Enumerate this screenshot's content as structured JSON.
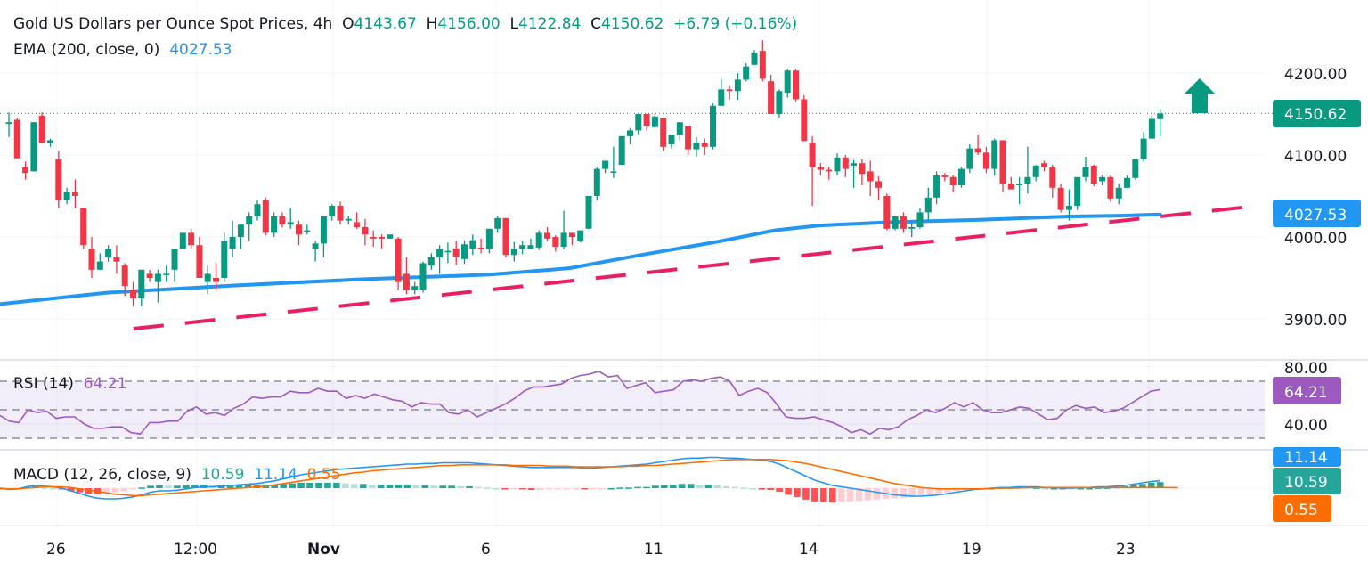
{
  "header": {
    "symbol_title": "Gold US Dollars per Ounce Spot Prices, 4h",
    "open_label": "O",
    "open_value": "4143.67",
    "high_label": "H",
    "high_value": "4156.00",
    "low_label": "L",
    "low_value": "4122.84",
    "close_label": "C",
    "close_value": "4150.62",
    "change": "+6.79 (+0.16%)"
  },
  "ema_legend": {
    "label": "EMA (200, close, 0)",
    "value": "4027.53"
  },
  "rsi_legend": {
    "label": "RSI (14)",
    "value": "64.21"
  },
  "macd_legend": {
    "label": "MACD (12, 26, close, 9)",
    "hist_value": "10.59",
    "macd_value": "11.14",
    "signal_value": "0.55"
  },
  "price_axis": {
    "ticks": [
      "4200.00",
      "4100.00",
      "4000.00",
      "3900.00"
    ],
    "last_price_tag": "4150.62",
    "ema_tag": "4027.53"
  },
  "rsi_axis": {
    "ticks": [
      "80.00",
      "40.00"
    ],
    "rsi_tag": "64.21"
  },
  "macd_axis": {
    "macd_tag": "11.14",
    "hist_tag": "10.59",
    "signal_tag": "0.55"
  },
  "time_axis": {
    "ticks": [
      "26",
      "12:00",
      "Nov",
      "6",
      "11",
      "14",
      "19",
      "23"
    ]
  },
  "colors": {
    "up": "#089981",
    "down": "#f23645",
    "ema": "#2196f3",
    "trendline": "#e91e63",
    "rsi": "#9c5ac0",
    "macd": "#2196f3",
    "signal": "#ff6d00",
    "arrow": "#089981"
  },
  "annotations": {
    "arrow": "up-arrow",
    "trendline": "rising-support-dashed"
  },
  "chart_data": [
    {
      "type": "candlestick",
      "title": "Gold US Dollars per Ounce Spot Prices, 4h",
      "ylim": [
        3850,
        4260
      ],
      "yticks": [
        3900,
        4000,
        4100,
        4200
      ],
      "xticks": [
        "26",
        "12:00",
        "Nov",
        "6",
        "11",
        "14",
        "19",
        "23"
      ],
      "ohlc": [
        [
          4138,
          4152,
          4122,
          4140
        ],
        [
          4143,
          4145,
          4096,
          4096
        ],
        [
          4085,
          4092,
          4070,
          4078
        ],
        [
          4080,
          4140,
          4080,
          4140
        ],
        [
          4148,
          4152,
          4115,
          4115
        ],
        [
          4115,
          4120,
          4110,
          4118
        ],
        [
          4095,
          4105,
          4035,
          4045
        ],
        [
          4045,
          4060,
          4040,
          4055
        ],
        [
          4055,
          4070,
          4035,
          4050
        ],
        [
          4035,
          4035,
          3985,
          3990
        ],
        [
          3985,
          4000,
          3950,
          3960
        ],
        [
          3960,
          3980,
          3960,
          3970
        ],
        [
          3975,
          3990,
          3970,
          3985
        ],
        [
          3975,
          3990,
          3955,
          3970
        ],
        [
          3965,
          3968,
          3928,
          3940
        ],
        [
          3935,
          3945,
          3915,
          3925
        ],
        [
          3925,
          3960,
          3915,
          3960
        ],
        [
          3955,
          3960,
          3945,
          3950
        ],
        [
          3945,
          3960,
          3920,
          3955
        ],
        [
          3955,
          3965,
          3945,
          3955
        ],
        [
          3960,
          3985,
          3945,
          3985
        ],
        [
          3985,
          4005,
          3985,
          4005
        ],
        [
          4005,
          4010,
          3985,
          3990
        ],
        [
          3990,
          4000,
          3950,
          3950
        ],
        [
          3945,
          3965,
          3930,
          3955
        ],
        [
          3950,
          3968,
          3935,
          3945
        ],
        [
          3950,
          4005,
          3945,
          3995
        ],
        [
          3985,
          4020,
          3975,
          4000
        ],
        [
          4000,
          4015,
          3985,
          4015
        ],
        [
          4015,
          4030,
          3995,
          4025
        ],
        [
          4025,
          4045,
          4020,
          4040
        ],
        [
          4045,
          4048,
          4002,
          4005
        ],
        [
          4005,
          4030,
          4000,
          4025
        ],
        [
          4025,
          4030,
          4012,
          4015
        ],
        [
          4015,
          4035,
          4010,
          4018
        ],
        [
          4015,
          4020,
          3990,
          4003
        ],
        [
          4008,
          4015,
          4003,
          4008
        ],
        [
          3985,
          3995,
          3970,
          3992
        ],
        [
          3992,
          4025,
          3975,
          4025
        ],
        [
          4025,
          4040,
          4020,
          4038
        ],
        [
          4038,
          4043,
          4015,
          4020
        ],
        [
          4020,
          4025,
          4015,
          4022
        ],
        [
          4018,
          4030,
          4010,
          4012
        ],
        [
          4012,
          4022,
          3990,
          4003
        ],
        [
          4000,
          4008,
          3988,
          3998
        ],
        [
          4000,
          4003,
          3986,
          3998
        ],
        [
          3998,
          4002,
          3998,
          4003
        ],
        [
          3998,
          4000,
          3935,
          3945
        ],
        [
          3955,
          3975,
          3930,
          3935
        ],
        [
          3935,
          3945,
          3930,
          3940
        ],
        [
          3935,
          3970,
          3932,
          3968
        ],
        [
          3965,
          3980,
          3960,
          3975
        ],
        [
          3975,
          3990,
          3955,
          3985
        ],
        [
          3983,
          3993,
          3968,
          3983
        ],
        [
          3986,
          3995,
          3966,
          3976
        ],
        [
          3973,
          3996,
          3967,
          3991
        ],
        [
          3985,
          4003,
          3978,
          3996
        ],
        [
          3987,
          3998,
          3980,
          3985
        ],
        [
          3985,
          4010,
          3980,
          4010
        ],
        [
          4010,
          4025,
          4005,
          4023
        ],
        [
          4023,
          4023,
          3975,
          3978
        ],
        [
          3978,
          3994,
          3970,
          3985
        ],
        [
          3985,
          3995,
          3979,
          3990
        ],
        [
          3985,
          3998,
          3985,
          3990
        ],
        [
          3987,
          4008,
          3984,
          4005
        ],
        [
          4005,
          4012,
          3995,
          3998
        ],
        [
          4000,
          4002,
          3982,
          3988
        ],
        [
          3988,
          4032,
          3985,
          4005
        ],
        [
          4005,
          4005,
          3990,
          4000
        ],
        [
          3995,
          4008,
          3993,
          4008
        ],
        [
          4010,
          4050,
          4010,
          4050
        ],
        [
          4050,
          4085,
          4045,
          4083
        ],
        [
          4083,
          4093,
          4078,
          4093
        ],
        [
          4080,
          4110,
          4072,
          4080
        ],
        [
          4088,
          4123,
          4088,
          4123
        ],
        [
          4123,
          4133,
          4113,
          4130
        ],
        [
          4130,
          4150,
          4125,
          4150
        ],
        [
          4150,
          4150,
          4130,
          4135
        ],
        [
          4134,
          4150,
          4134,
          4147
        ],
        [
          4145,
          4145,
          4105,
          4110
        ],
        [
          4113,
          4125,
          4108,
          4125
        ],
        [
          4125,
          4140,
          4118,
          4140
        ],
        [
          4135,
          4135,
          4100,
          4107
        ],
        [
          4107,
          4122,
          4098,
          4115
        ],
        [
          4115,
          4120,
          4100,
          4110
        ],
        [
          4110,
          4163,
          4107,
          4160
        ],
        [
          4160,
          4193,
          4160,
          4180
        ],
        [
          4180,
          4185,
          4168,
          4178
        ],
        [
          4178,
          4200,
          4167,
          4192
        ],
        [
          4192,
          4212,
          4190,
          4208
        ],
        [
          4210,
          4228,
          4210,
          4225
        ],
        [
          4227,
          4240,
          4190,
          4193
        ],
        [
          4190,
          4198,
          4150,
          4150
        ],
        [
          4150,
          4180,
          4145,
          4178
        ],
        [
          4176,
          4205,
          4170,
          4203
        ],
        [
          4203,
          4205,
          4165,
          4168
        ],
        [
          4168,
          4173,
          4117,
          4117
        ],
        [
          4115,
          4123,
          4038,
          4085
        ],
        [
          4085,
          4090,
          4075,
          4082
        ],
        [
          4082,
          4085,
          4070,
          4080
        ],
        [
          4080,
          4102,
          4075,
          4097
        ],
        [
          4097,
          4100,
          4073,
          4083
        ],
        [
          4087,
          4094,
          4060,
          4090
        ],
        [
          4090,
          4095,
          4063,
          4077
        ],
        [
          4080,
          4093,
          4050,
          4068
        ],
        [
          4068,
          4074,
          4045,
          4060
        ],
        [
          4050,
          4053,
          4008,
          4010
        ],
        [
          4010,
          4025,
          4008,
          4025
        ],
        [
          4025,
          4030,
          4005,
          4010
        ],
        [
          4010,
          4018,
          4000,
          4012
        ],
        [
          4012,
          4035,
          4010,
          4030
        ],
        [
          4030,
          4060,
          4020,
          4048
        ],
        [
          4048,
          4080,
          4040,
          4075
        ],
        [
          4075,
          4078,
          4068,
          4073
        ],
        [
          4073,
          4075,
          4055,
          4063
        ],
        [
          4063,
          4085,
          4060,
          4083
        ],
        [
          4083,
          4113,
          4078,
          4108
        ],
        [
          4108,
          4125,
          4100,
          4103
        ],
        [
          4103,
          4110,
          4078,
          4083
        ],
        [
          4083,
          4120,
          4075,
          4118
        ],
        [
          4118,
          4118,
          4055,
          4065
        ],
        [
          4065,
          4073,
          4060,
          4058
        ],
        [
          4063,
          4073,
          4040,
          4065
        ],
        [
          4065,
          4110,
          4053,
          4073
        ],
        [
          4073,
          4088,
          4068,
          4087
        ],
        [
          4090,
          4093,
          4080,
          4085
        ],
        [
          4085,
          4088,
          4048,
          4060
        ],
        [
          4060,
          4065,
          4030,
          4033
        ],
        [
          4033,
          4058,
          4020,
          4038
        ],
        [
          4038,
          4073,
          4033,
          4073
        ],
        [
          4073,
          4098,
          4068,
          4085
        ],
        [
          4087,
          4088,
          4062,
          4065
        ],
        [
          4068,
          4075,
          4063,
          4073
        ],
        [
          4073,
          4075,
          4043,
          4047
        ],
        [
          4047,
          4065,
          4040,
          4060
        ],
        [
          4060,
          4075,
          4060,
          4072
        ],
        [
          4072,
          4095,
          4070,
          4095
        ],
        [
          4095,
          4128,
          4092,
          4120
        ],
        [
          4120,
          4148,
          4120,
          4144
        ],
        [
          4143.67,
          4156,
          4122.84,
          4150.62
        ]
      ],
      "ema200": {
        "start": 3918,
        "end": 4027.53,
        "label": "EMA (200, close, 0)",
        "last": 4027.53
      },
      "trendline": {
        "from_price": 3888,
        "to_price": 4038,
        "style": "dashed"
      },
      "last_price": 4150.62
    },
    {
      "type": "line",
      "title": "RSI (14)",
      "ylim": [
        20,
        90
      ],
      "levels": [
        70,
        50,
        30
      ],
      "yticks": [
        80,
        40
      ],
      "values": [
        46,
        42,
        41,
        50,
        48,
        49,
        44,
        45,
        45,
        40,
        37,
        37,
        38,
        38,
        34,
        33,
        41,
        41,
        42,
        42,
        49,
        52,
        47,
        48,
        46,
        51,
        54,
        59,
        58,
        59,
        59,
        63,
        62,
        62,
        65,
        63,
        63,
        58,
        60,
        58,
        61,
        59,
        57,
        56,
        52,
        55,
        54,
        54,
        48,
        47,
        50,
        45,
        48,
        51,
        54,
        58,
        63,
        66,
        66,
        67,
        68,
        72,
        74,
        75,
        77,
        73,
        74,
        65,
        67,
        69,
        62,
        63,
        64,
        70,
        71,
        70,
        72,
        73,
        70,
        60,
        63,
        65,
        62,
        54,
        45,
        44,
        44,
        45,
        43,
        41,
        38,
        34,
        36,
        33,
        37,
        36,
        38,
        43,
        46,
        50,
        48,
        51,
        55,
        52,
        55,
        50,
        48,
        48,
        50,
        52,
        51,
        47,
        43,
        44,
        50,
        53,
        51,
        52,
        48,
        49,
        51,
        55,
        59,
        63,
        64.21
      ],
      "last": 64.21
    },
    {
      "type": "line",
      "title": "MACD (12, 26, close, 9)",
      "series": [
        {
          "name": "MACD",
          "last": 11.14
        },
        {
          "name": "Signal",
          "last": 0.55
        },
        {
          "name": "Histogram",
          "last": 10.59
        }
      ],
      "macd": [
        0,
        -2,
        -1,
        2,
        4,
        3,
        2,
        0,
        -4,
        -8,
        -12,
        -15,
        -16,
        -16,
        -15,
        -13,
        -10,
        -6,
        -4,
        -4,
        -3,
        -1,
        1,
        2,
        2,
        3,
        4,
        5,
        6,
        7,
        9,
        11,
        14,
        17,
        20,
        22,
        24,
        26,
        28,
        29,
        30,
        31,
        32,
        33,
        34,
        35,
        36,
        36,
        37,
        37,
        38,
        38,
        38,
        38,
        37,
        36,
        35,
        34,
        33,
        32,
        31,
        31,
        31,
        31,
        31,
        31,
        30,
        30,
        31,
        32,
        33,
        34,
        35,
        36,
        38,
        40,
        42,
        44,
        45,
        45,
        46,
        46,
        45,
        45,
        44,
        43,
        42,
        40,
        36,
        30,
        24,
        18,
        12,
        8,
        4,
        2,
        0,
        -2,
        -4,
        -6,
        -8,
        -10,
        -11,
        -12,
        -12,
        -11,
        -10,
        -8,
        -6,
        -4,
        -2,
        -1,
        0,
        1,
        1,
        2,
        2,
        2,
        1,
        1,
        0,
        0,
        1,
        1,
        2,
        2,
        3,
        4,
        6,
        8,
        10,
        11.14
      ],
      "signal": [
        0,
        -1,
        -1,
        0,
        1,
        2,
        2,
        2,
        1,
        -1,
        -3,
        -5,
        -7,
        -9,
        -10,
        -11,
        -11,
        -10,
        -9,
        -8,
        -7,
        -6,
        -5,
        -4,
        -3,
        -2,
        -1,
        0,
        1,
        2,
        3,
        5,
        7,
        9,
        11,
        13,
        15,
        17,
        19,
        21,
        23,
        24,
        26,
        27,
        28,
        29,
        30,
        31,
        32,
        33,
        34,
        34,
        35,
        35,
        35,
        35,
        35,
        35,
        34,
        34,
        34,
        34,
        33,
        33,
        33,
        32,
        32,
        32,
        32,
        32,
        32,
        33,
        33,
        34,
        34,
        35,
        36,
        37,
        38,
        39,
        40,
        41,
        42,
        43,
        43,
        43,
        43,
        43,
        42,
        41,
        39,
        37,
        34,
        31,
        28,
        25,
        22,
        19,
        16,
        13,
        10,
        7,
        5,
        3,
        1,
        0,
        -1,
        -1,
        -1,
        -1,
        -1,
        -1,
        0,
        0,
        0,
        0,
        1,
        1,
        1,
        1,
        1,
        1,
        1,
        1,
        1,
        1,
        1,
        1,
        1,
        1,
        1,
        1,
        1,
        0.55
      ],
      "ylim": [
        -30,
        60
      ]
    }
  ]
}
